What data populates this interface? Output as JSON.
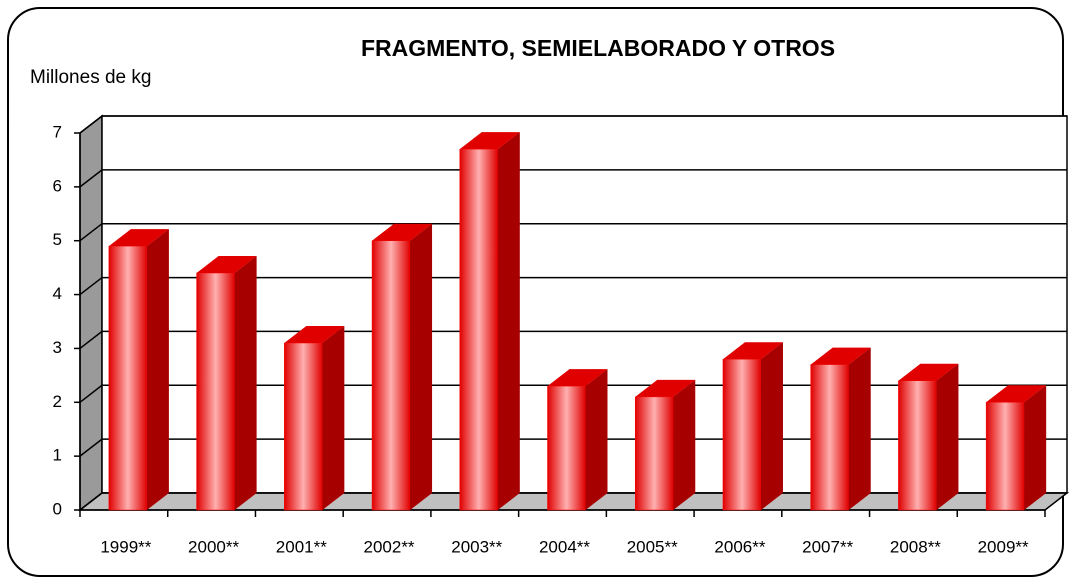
{
  "chart_data": {
    "type": "bar3d",
    "title": "FRAGMENTO, SEMIELABORADO Y OTROS",
    "y_label": "Millones de kg",
    "categories": [
      "1999**",
      "2000**",
      "2001**",
      "2002**",
      "2003**",
      "2004**",
      "2005**",
      "2006**",
      "2007**",
      "2008**",
      "2009**"
    ],
    "values": [
      4.9,
      4.4,
      3.1,
      5.0,
      6.7,
      2.3,
      2.1,
      2.8,
      2.7,
      2.4,
      2.0
    ],
    "color": "#ff0000",
    "ylim": [
      0,
      7
    ],
    "yticks": [
      0,
      1,
      2,
      3,
      4,
      5,
      6,
      7
    ],
    "grid": true
  }
}
